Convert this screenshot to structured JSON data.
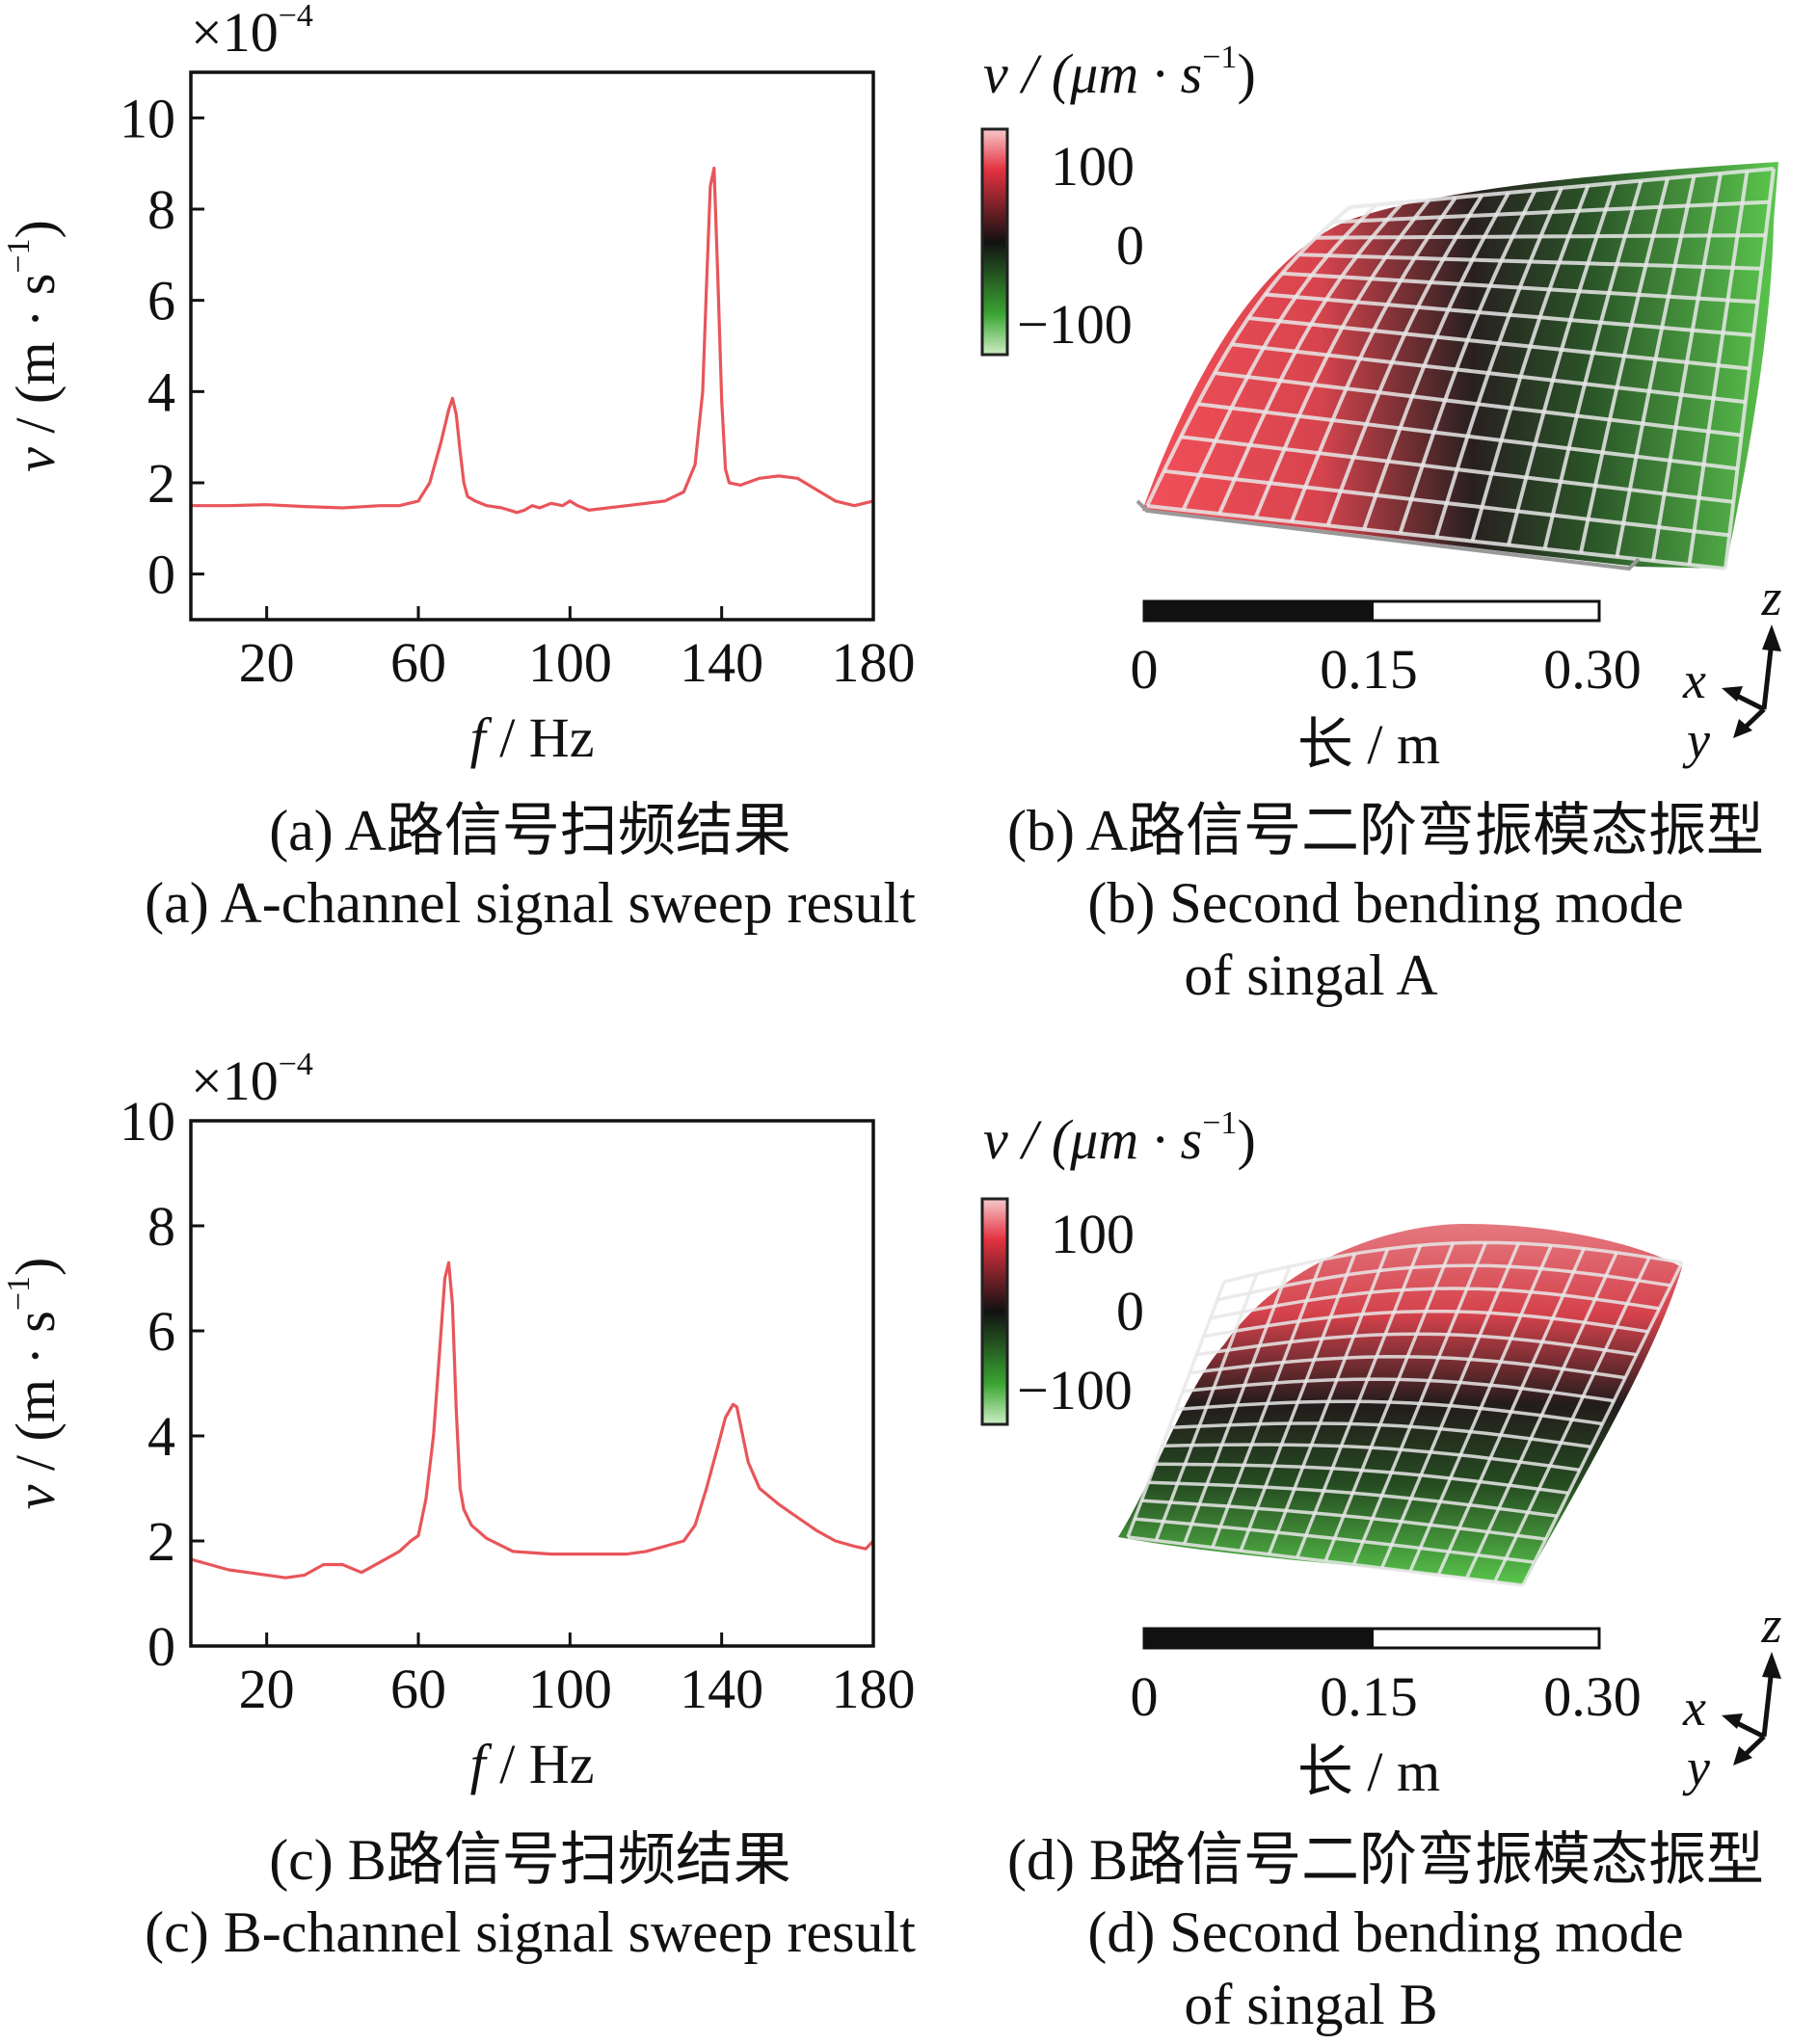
{
  "chart_data": [
    {
      "type": "line",
      "panel": "a",
      "exponent_label": "×10",
      "exponent_power": "−4",
      "xlabel_var": "f",
      "xlabel_unit": " / Hz",
      "ylabel": "v / (m · s",
      "ylabel_power": "−1",
      "ylabel_close": ")",
      "xlim": [
        0,
        180
      ],
      "ylim": [
        -1,
        11
      ],
      "x_ticks": [
        20,
        60,
        100,
        140,
        180
      ],
      "y_ticks": [
        0,
        2,
        4,
        6,
        8,
        10
      ],
      "series": [
        {
          "color": "#e8555a",
          "x": [
            0,
            10,
            20,
            30,
            40,
            50,
            55,
            60,
            63,
            66,
            68,
            69,
            70,
            71,
            72,
            73,
            75,
            78,
            82,
            86,
            88,
            90,
            92,
            95,
            98,
            100,
            102,
            105,
            110,
            115,
            120,
            125,
            130,
            133,
            135,
            136,
            137,
            138,
            139,
            140,
            141,
            142,
            145,
            150,
            155,
            160,
            165,
            170,
            175,
            180
          ],
          "y": [
            1.5,
            1.5,
            1.52,
            1.48,
            1.45,
            1.5,
            1.5,
            1.6,
            2.0,
            2.9,
            3.6,
            3.85,
            3.5,
            2.7,
            2.0,
            1.7,
            1.6,
            1.5,
            1.45,
            1.35,
            1.4,
            1.5,
            1.45,
            1.55,
            1.5,
            1.6,
            1.5,
            1.4,
            1.45,
            1.5,
            1.55,
            1.6,
            1.8,
            2.4,
            4.0,
            6.3,
            8.5,
            8.9,
            6.5,
            3.8,
            2.3,
            2.0,
            1.95,
            2.1,
            2.15,
            2.1,
            1.85,
            1.6,
            1.5,
            1.6
          ]
        }
      ]
    },
    {
      "type": "line",
      "panel": "c",
      "exponent_label": "×10",
      "exponent_power": "−4",
      "xlabel_var": "f",
      "xlabel_unit": " / Hz",
      "ylabel": "v / (m · s",
      "ylabel_power": "−1",
      "ylabel_close": ")",
      "xlim": [
        0,
        180
      ],
      "ylim": [
        0,
        10
      ],
      "x_ticks": [
        20,
        60,
        100,
        140,
        180
      ],
      "y_ticks": [
        0,
        2,
        4,
        6,
        8,
        10
      ],
      "series": [
        {
          "color": "#e8555a",
          "x": [
            0,
            5,
            10,
            15,
            20,
            25,
            30,
            35,
            40,
            45,
            50,
            55,
            58,
            60,
            62,
            64,
            66,
            67,
            68,
            69,
            70,
            71,
            72,
            74,
            78,
            85,
            95,
            105,
            115,
            120,
            125,
            130,
            133,
            136,
            139,
            141,
            143,
            144,
            145,
            147,
            150,
            155,
            160,
            165,
            170,
            175,
            178,
            180
          ],
          "y": [
            1.65,
            1.55,
            1.45,
            1.4,
            1.35,
            1.3,
            1.35,
            1.55,
            1.55,
            1.4,
            1.6,
            1.8,
            2.0,
            2.1,
            2.8,
            4.0,
            6.0,
            7.0,
            7.3,
            6.5,
            4.5,
            3.0,
            2.6,
            2.3,
            2.05,
            1.8,
            1.75,
            1.75,
            1.75,
            1.8,
            1.9,
            2.0,
            2.3,
            3.0,
            3.8,
            4.35,
            4.6,
            4.55,
            4.2,
            3.5,
            3.0,
            2.7,
            2.45,
            2.2,
            2.0,
            1.9,
            1.85,
            2.0
          ]
        }
      ]
    }
  ],
  "panels": {
    "b": {
      "colorbar_label": "v / (μm · s",
      "colorbar_power": "−1",
      "colorbar_close": ")",
      "colorbar_ticks": [
        "100",
        "0",
        "−100"
      ],
      "colors": {
        "high": "#f03a44",
        "mid": "#151515",
        "low": "#45b53a",
        "grid": "#e8e8e8"
      },
      "scale_ticks": [
        "0",
        "0.15",
        "0.30"
      ],
      "scale_label": "长 / m",
      "axes": {
        "x": "x",
        "y": "y",
        "z": "z"
      }
    },
    "d": {
      "colorbar_label": "v / (μm · s",
      "colorbar_power": "−1",
      "colorbar_close": ")",
      "colorbar_ticks": [
        "100",
        "0",
        "−100"
      ],
      "colors": {
        "high": "#f03a44",
        "mid": "#151515",
        "low": "#45b53a",
        "grid": "#e8e8e8"
      },
      "scale_ticks": [
        "0",
        "0.15",
        "0.30"
      ],
      "scale_label": "长 / m",
      "axes": {
        "x": "x",
        "y": "y",
        "z": "z"
      }
    }
  },
  "captions": {
    "a_cn": "(a)  A路信号扫频结果",
    "a_en": "(a)  A-channel signal sweep result",
    "b_cn": "(b)  A路信号二阶弯振模态振型",
    "b_en1": "(b)  Second bending mode",
    "b_en2": "of singal A",
    "c_cn": "(c)  B路信号扫频结果",
    "c_en": "(c)  B-channel signal sweep result",
    "d_cn": "(d)  B路信号二阶弯振模态振型",
    "d_en1": "(d)  Second bending mode",
    "d_en2": "of singal B"
  }
}
